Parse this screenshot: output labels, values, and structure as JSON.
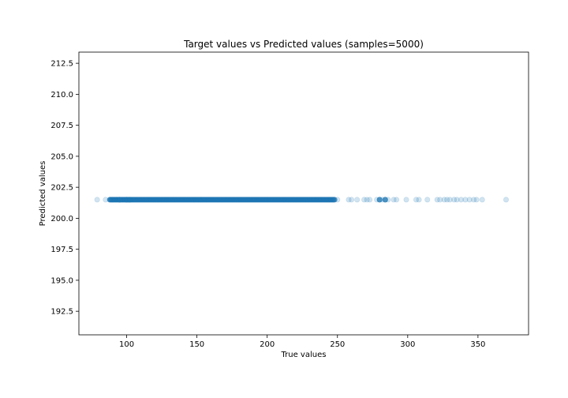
{
  "chart_data": {
    "type": "scatter",
    "title": "Target values vs Predicted values (samples=5000)",
    "xlabel": "True values",
    "ylabel": "Predicted values",
    "xlim": [
      66,
      386
    ],
    "ylim": [
      190.6,
      213.4
    ],
    "xticks": [
      100,
      150,
      200,
      250,
      300,
      350
    ],
    "yticks": [
      192.5,
      195.0,
      197.5,
      200.0,
      202.5,
      205.0,
      207.5,
      210.0,
      212.5
    ],
    "grid": false,
    "marker_color": "#1f77b4",
    "marker_alpha": 0.2,
    "predicted_constant": 201.5,
    "dense_range": [
      88,
      248
    ],
    "x": [
      79,
      85,
      88,
      90,
      93,
      95,
      97,
      99,
      101,
      103,
      250,
      258,
      260,
      264,
      269,
      271,
      273,
      278,
      280,
      282,
      284,
      286,
      290,
      292,
      299,
      306,
      308,
      314,
      321,
      323,
      326,
      328,
      330,
      333,
      335,
      338,
      341,
      344,
      347,
      349,
      353,
      370
    ],
    "y": 201.5
  }
}
